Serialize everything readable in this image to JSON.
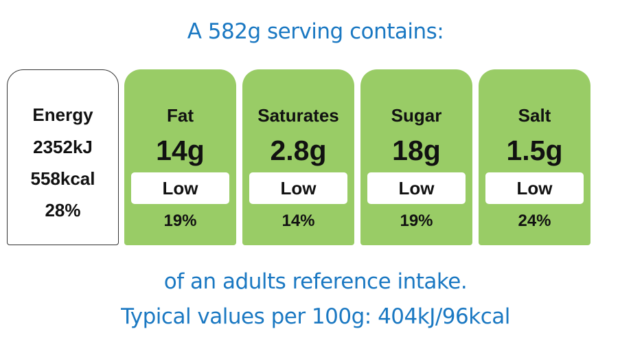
{
  "title": "A 582g serving contains:",
  "energy": {
    "label": "Energy",
    "kj": "2352kJ",
    "kcal": "558kcal",
    "percent": "28%"
  },
  "nutrients": [
    {
      "name": "Fat",
      "amount": "14g",
      "level": "Low",
      "percent": "19%"
    },
    {
      "name": "Saturates",
      "amount": "2.8g",
      "level": "Low",
      "percent": "14%"
    },
    {
      "name": "Sugar",
      "amount": "18g",
      "level": "Low",
      "percent": "19%"
    },
    {
      "name": "Salt",
      "amount": "1.5g",
      "level": "Low",
      "percent": "24%"
    }
  ],
  "footer": {
    "line1": "of an adults reference intake.",
    "line2": "Typical values per 100g: 404kJ/96kcal"
  },
  "colors": {
    "heading_text": "#1a78c2",
    "low_level_fill": "#99cc66",
    "level_box": "#ffffff"
  }
}
